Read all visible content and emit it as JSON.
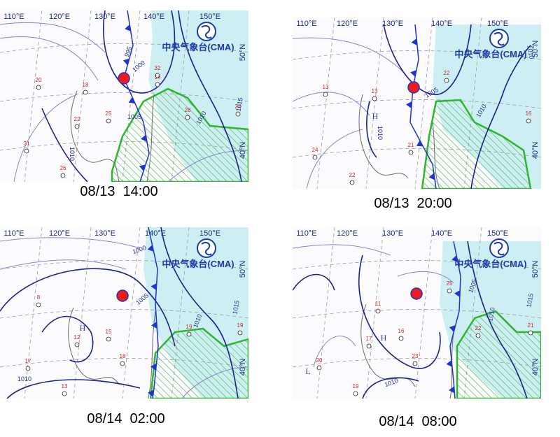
{
  "panels": [
    {
      "caption": "08/13  14:00",
      "lon_labels": [
        "110°E",
        "120°E",
        "130°E",
        "140°E",
        "150°E"
      ],
      "lat_labels": [
        "50°N",
        "40°N"
      ],
      "logo": "中央气象台(CMA)",
      "isobar_labels": [
        "995",
        "1000",
        "1005",
        "1010",
        "1015",
        "1010"
      ],
      "station_labels": [
        "20",
        "32",
        "14",
        "18",
        "25",
        "22",
        "31",
        "26",
        "28",
        "24"
      ],
      "center_labels": []
    },
    {
      "caption": "08/13  20:00",
      "lon_labels": [
        "110°E",
        "120°E",
        "130°E",
        "140°E",
        "150°E"
      ],
      "lat_labels": [
        "50°N",
        "40°N"
      ],
      "logo": "中央气象台(CMA)",
      "isobar_labels": [
        "1005",
        "1010",
        "1010",
        "1010"
      ],
      "station_labels": [
        "13",
        "22",
        "13",
        "24",
        "22",
        "21",
        "16"
      ],
      "center_labels": [
        "H"
      ]
    },
    {
      "caption": "08/14  02:00",
      "lon_labels": [
        "110°E",
        "120°E",
        "130°E",
        "140°E",
        "150°E"
      ],
      "lat_labels": [
        "50°N",
        "40°N"
      ],
      "logo": "中央气象台(CMA)",
      "isobar_labels": [
        "1000",
        "1005",
        "1010",
        "1015",
        "1010"
      ],
      "station_labels": [
        "8",
        "12",
        "15",
        "18",
        "19",
        "19",
        "13",
        "17"
      ],
      "center_labels": [
        "H"
      ]
    },
    {
      "caption": "08/14  08:00",
      "lon_labels": [
        "110°E",
        "120°E",
        "130°E",
        "140°E",
        "150°E"
      ],
      "lat_labels": [
        "50°N",
        "40°N"
      ],
      "logo": "中央气象台(CMA)",
      "isobar_labels": [
        "1005",
        "1010",
        "1015",
        "1010"
      ],
      "station_labels": [
        "25",
        "11",
        "17",
        "16",
        "23",
        "22",
        "21",
        "19",
        "20"
      ],
      "center_labels": [
        "H",
        "L"
      ]
    }
  ]
}
